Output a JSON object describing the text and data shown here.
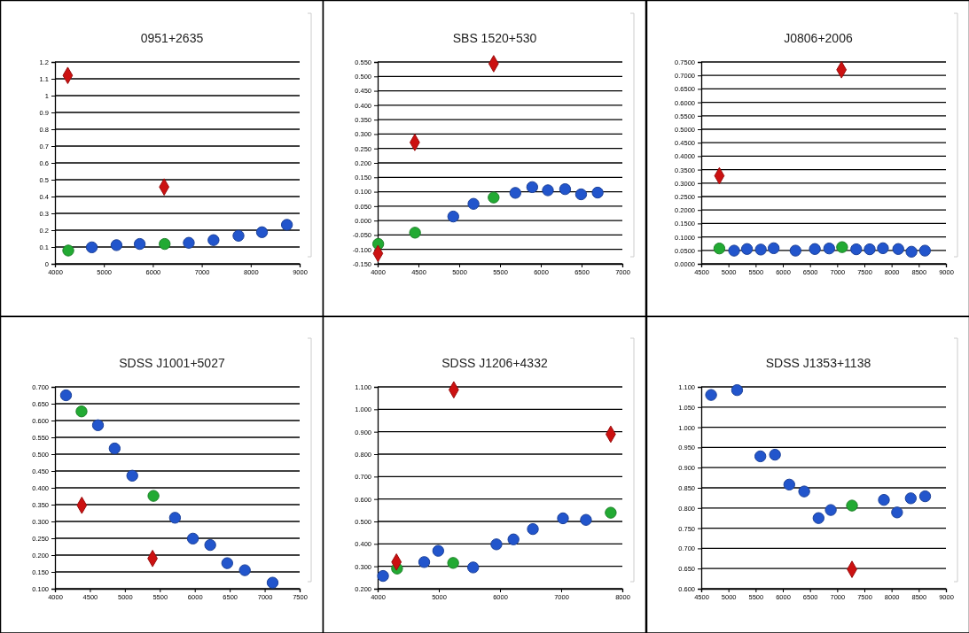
{
  "chart_data": [
    {
      "type": "scatter",
      "title": "0951+2635",
      "grid": "y",
      "xlim": [
        4000,
        9000
      ],
      "xticks": [
        4000,
        5000,
        6000,
        7000,
        8000,
        9000
      ],
      "ylim": [
        0,
        1.2
      ],
      "yticks": [
        0,
        0.1,
        0.2,
        0.3,
        0.4,
        0.5,
        0.6,
        0.7,
        0.8,
        0.9,
        1,
        1.1,
        1.2
      ],
      "series": [
        {
          "color": "#2255cc",
          "marker": "circle",
          "x": [
            4753,
            5257,
            5732,
            6735,
            7240,
            7750,
            8230,
            8740
          ],
          "values": [
            0.098,
            0.111,
            0.118,
            0.125,
            0.141,
            0.167,
            0.188,
            0.232
          ]
        },
        {
          "color": "#22aa33",
          "marker": "circle",
          "x": [
            4272,
            6242
          ],
          "values": [
            0.079,
            0.118
          ]
        },
        {
          "color": "#cc1111",
          "marker": "diamond",
          "x": [
            4261,
            6231
          ],
          "values": [
            1.12,
            0.457
          ]
        }
      ]
    },
    {
      "type": "scatter",
      "title": "SBS 1520+530",
      "grid": "y",
      "xlim": [
        4000,
        7000
      ],
      "xticks": [
        4000,
        4500,
        5000,
        5500,
        6000,
        6500,
        7000
      ],
      "ylim": [
        -0.15,
        0.55
      ],
      "yticks": [
        {
          "value": -0.15,
          "label": "-0.150"
        },
        {
          "value": -0.1,
          "label": "-0.100"
        },
        {
          "value": -0.05,
          "label": "-0.050"
        },
        {
          "value": 0,
          "label": "0.000"
        },
        {
          "value": 0.05,
          "label": "0.050"
        },
        {
          "value": 0.1,
          "label": "0.100"
        },
        {
          "value": 0.15,
          "label": "0.150"
        },
        {
          "value": 0.2,
          "label": "0.200"
        },
        {
          "value": 0.25,
          "label": "0.250"
        },
        {
          "value": 0.3,
          "label": "0.300"
        },
        {
          "value": 0.35,
          "label": "0.350"
        },
        {
          "value": 0.4,
          "label": "0.400"
        },
        {
          "value": 0.45,
          "label": "0.450"
        },
        {
          "value": 0.5,
          "label": "0.500"
        },
        {
          "value": 0.55,
          "label": "0.550"
        }
      ],
      "series": [
        {
          "color": "#2255cc",
          "marker": "circle",
          "x": [
            4927,
            5175,
            5688,
            5895,
            6087,
            6298,
            6494,
            6697
          ],
          "values": [
            0.014,
            0.058,
            0.096,
            0.116,
            0.105,
            0.109,
            0.091,
            0.097
          ]
        },
        {
          "color": "#22aa33",
          "marker": "circle",
          "x": [
            4007,
            4458,
            5422
          ],
          "values": [
            -0.081,
            -0.042,
            0.08
          ]
        },
        {
          "color": "#cc1111",
          "marker": "diamond",
          "x": [
            4004,
            4455,
            5422
          ],
          "values": [
            -0.114,
            0.271,
            0.544
          ]
        }
      ]
    },
    {
      "type": "scatter",
      "title": "J0806+2006",
      "grid": "y",
      "xlim": [
        4500,
        9000
      ],
      "xticks": [
        4500,
        5000,
        5500,
        6000,
        6500,
        7000,
        7500,
        8000,
        8500,
        9000
      ],
      "ylim": [
        0,
        0.75
      ],
      "yticks": [
        {
          "value": 0,
          "label": "0.0000"
        },
        {
          "value": 0.05,
          "label": "0.0500"
        },
        {
          "value": 0.1,
          "label": "0.1000"
        },
        {
          "value": 0.15,
          "label": "0.1500"
        },
        {
          "value": 0.2,
          "label": "0.2000"
        },
        {
          "value": 0.25,
          "label": "0.2500"
        },
        {
          "value": 0.3,
          "label": "0.3000"
        },
        {
          "value": 0.35,
          "label": "0.3500"
        },
        {
          "value": 0.4,
          "label": "0.4000"
        },
        {
          "value": 0.45,
          "label": "0.4500"
        },
        {
          "value": 0.5,
          "label": "0.5000"
        },
        {
          "value": 0.55,
          "label": "0.5500"
        },
        {
          "value": 0.6,
          "label": "0.6000"
        },
        {
          "value": 0.65,
          "label": "0.6500"
        },
        {
          "value": 0.7,
          "label": "0.7000"
        },
        {
          "value": 0.75,
          "label": "0.7500"
        }
      ],
      "series": [
        {
          "color": "#2255cc",
          "marker": "circle",
          "x": [
            5104,
            5341,
            5595,
            5832,
            6233,
            6589,
            6853,
            7350,
            7598,
            7841,
            8123,
            8366,
            8614
          ],
          "values": [
            0.049,
            0.055,
            0.053,
            0.058,
            0.049,
            0.055,
            0.057,
            0.054,
            0.054,
            0.058,
            0.055,
            0.045,
            0.049
          ]
        },
        {
          "color": "#22aa33",
          "marker": "circle",
          "x": [
            4833,
            7090
          ],
          "values": [
            0.057,
            0.062
          ]
        },
        {
          "color": "#cc1111",
          "marker": "diamond",
          "x": [
            4833,
            7079
          ],
          "values": [
            0.327,
            0.721
          ]
        }
      ]
    },
    {
      "type": "scatter",
      "title": "SDSS J1001+5027",
      "grid": "y",
      "xlim": [
        4000,
        7500
      ],
      "xticks": [
        4000,
        4500,
        5000,
        5500,
        6000,
        6500,
        7000,
        7500
      ],
      "ylim": [
        0.1,
        0.7
      ],
      "yticks": [
        {
          "value": 0.1,
          "label": "0.100"
        },
        {
          "value": 0.15,
          "label": "0.150"
        },
        {
          "value": 0.2,
          "label": "0.200"
        },
        {
          "value": 0.25,
          "label": "0.250"
        },
        {
          "value": 0.3,
          "label": "0.300"
        },
        {
          "value": 0.35,
          "label": "0.350"
        },
        {
          "value": 0.4,
          "label": "0.400"
        },
        {
          "value": 0.45,
          "label": "0.450"
        },
        {
          "value": 0.5,
          "label": "0.500"
        },
        {
          "value": 0.55,
          "label": "0.550"
        },
        {
          "value": 0.6,
          "label": "0.600"
        },
        {
          "value": 0.65,
          "label": "0.650"
        },
        {
          "value": 0.7,
          "label": "0.700"
        }
      ],
      "series": [
        {
          "color": "#2255cc",
          "marker": "circle",
          "x": [
            4158,
            4615,
            4854,
            5106,
            5717,
            5973,
            6221,
            6464,
            6716,
            7113
          ],
          "values": [
            0.675,
            0.586,
            0.517,
            0.436,
            0.311,
            0.249,
            0.23,
            0.176,
            0.155,
            0.118
          ]
        },
        {
          "color": "#22aa33",
          "marker": "circle",
          "x": [
            4380,
            5409
          ],
          "values": [
            0.627,
            0.376
          ]
        },
        {
          "color": "#cc1111",
          "marker": "diamond",
          "x": [
            4384,
            5396
          ],
          "values": [
            0.348,
            0.19
          ]
        }
      ]
    },
    {
      "type": "scatter",
      "title": "SDSS J1206+4332",
      "grid": "y",
      "xlim": [
        4000,
        8000
      ],
      "xticks": [
        4000,
        5000,
        6000,
        7000,
        8000
      ],
      "ylim": [
        0.2,
        1.1
      ],
      "yticks": [
        {
          "value": 0.2,
          "label": "0.200"
        },
        {
          "value": 0.3,
          "label": "0.300"
        },
        {
          "value": 0.4,
          "label": "0.400"
        },
        {
          "value": 0.5,
          "label": "0.500"
        },
        {
          "value": 0.6,
          "label": "0.600"
        },
        {
          "value": 0.7,
          "label": "0.700"
        },
        {
          "value": 0.8,
          "label": "0.800"
        },
        {
          "value": 0.9,
          "label": "0.900"
        },
        {
          "value": 1,
          "label": "1.000"
        },
        {
          "value": 1.1,
          "label": "1.100"
        }
      ],
      "series": [
        {
          "color": "#2255cc",
          "marker": "circle",
          "x": [
            4088,
            4761,
            4990,
            5561,
            5941,
            6220,
            6537,
            7029,
            7405
          ],
          "values": [
            0.257,
            0.319,
            0.369,
            0.295,
            0.398,
            0.42,
            0.466,
            0.514,
            0.507
          ]
        },
        {
          "color": "#22aa33",
          "marker": "circle",
          "x": [
            4317,
            5234,
            7810
          ],
          "values": [
            0.29,
            0.315,
            0.539
          ]
        },
        {
          "color": "#cc1111",
          "marker": "diamond",
          "x": [
            4307,
            5244,
            7810
          ],
          "values": [
            0.319,
            1.087,
            0.889
          ]
        }
      ]
    },
    {
      "type": "scatter",
      "title": "SDSS J1353+1138",
      "grid": "y",
      "xlim": [
        4500,
        9000
      ],
      "xticks": [
        4500,
        5000,
        5500,
        6000,
        6500,
        7000,
        7500,
        8000,
        8500,
        9000
      ],
      "ylim": [
        0.6,
        1.1
      ],
      "yticks": [
        {
          "value": 0.6,
          "label": "0.600"
        },
        {
          "value": 0.65,
          "label": "0.650"
        },
        {
          "value": 0.7,
          "label": "0.700"
        },
        {
          "value": 0.75,
          "label": "0.750"
        },
        {
          "value": 0.8,
          "label": "0.800"
        },
        {
          "value": 0.85,
          "label": "0.850"
        },
        {
          "value": 0.9,
          "label": "0.900"
        },
        {
          "value": 0.95,
          "label": "0.950"
        },
        {
          "value": 1,
          "label": "1.000"
        },
        {
          "value": 1.05,
          "label": "1.050"
        },
        {
          "value": 1.1,
          "label": "1.100"
        }
      ],
      "series": [
        {
          "color": "#2255cc",
          "marker": "circle",
          "x": [
            4681,
            5159,
            5587,
            5856,
            6119,
            6393,
            6657,
            6882,
            7859,
            8101,
            8353,
            8617
          ],
          "values": [
            1.08,
            1.092,
            0.928,
            0.932,
            0.858,
            0.841,
            0.775,
            0.795,
            0.82,
            0.789,
            0.824,
            0.829
          ]
        },
        {
          "color": "#22aa33",
          "marker": "circle",
          "x": [
            7272
          ],
          "values": [
            0.806
          ]
        },
        {
          "color": "#cc1111",
          "marker": "diamond",
          "x": [
            7272
          ],
          "values": [
            0.648
          ]
        }
      ]
    }
  ]
}
